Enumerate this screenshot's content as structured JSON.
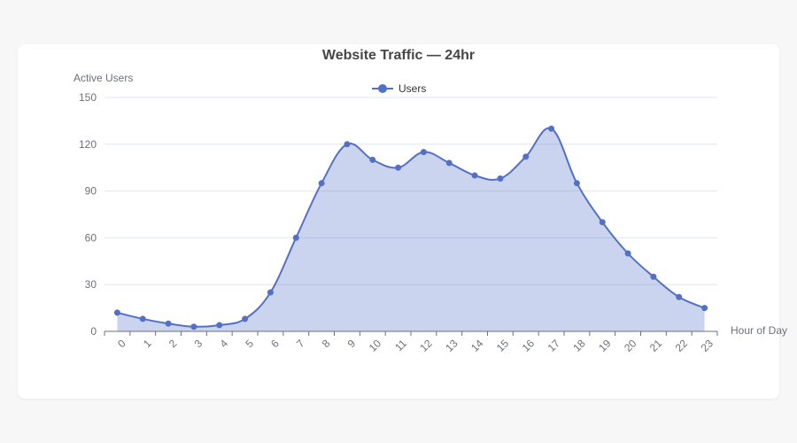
{
  "chart_data": {
    "type": "area",
    "title": "Website Traffic — 24hr",
    "xlabel": "Hour of Day",
    "ylabel": "Active Users",
    "x": [
      "0",
      "1",
      "2",
      "3",
      "4",
      "5",
      "6",
      "7",
      "8",
      "9",
      "10",
      "11",
      "12",
      "13",
      "14",
      "15",
      "16",
      "17",
      "18",
      "19",
      "20",
      "21",
      "22",
      "23"
    ],
    "series": [
      {
        "name": "Users",
        "values": [
          12,
          8,
          5,
          3,
          4,
          8,
          25,
          60,
          95,
          120,
          110,
          105,
          115,
          108,
          100,
          98,
          112,
          130,
          95,
          70,
          50,
          35,
          22,
          15
        ]
      }
    ],
    "ylim": [
      0,
      150
    ],
    "yticks": [
      "0",
      "30",
      "60",
      "90",
      "120",
      "150"
    ],
    "grid": true,
    "smooth": true,
    "legend_position": "top-center",
    "colors": {
      "line": "#5470c6",
      "area": "#5470c6",
      "grid": "#e0e6f1",
      "axis": "#6e7079"
    }
  }
}
